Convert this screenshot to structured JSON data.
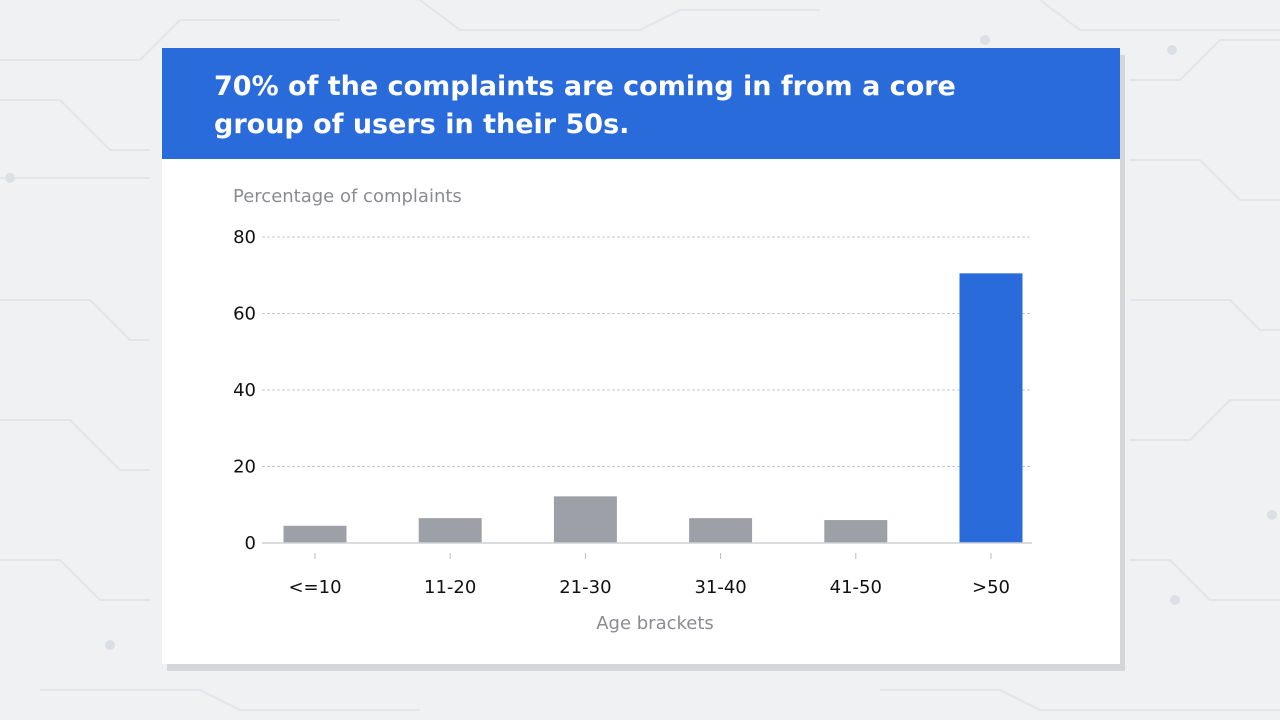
{
  "headline": "70% of the complaints are coming in from a core group of users in their 50s.",
  "colors": {
    "accent": "#2a6bdc",
    "bar_default": "#9da0a7",
    "bar_highlight": "#2a6bdc",
    "background": "#f0f1f3"
  },
  "chart_data": {
    "type": "bar",
    "title": "",
    "ylabel": "Percentage of complaints",
    "xlabel": "Age brackets",
    "categories": [
      "<=10",
      "11-20",
      "21-30",
      "31-40",
      "41-50",
      ">50"
    ],
    "values": [
      4.5,
      6.5,
      12.2,
      6.5,
      6.0,
      70.5
    ],
    "highlight": [
      false,
      false,
      false,
      false,
      false,
      true
    ],
    "ylim": [
      0,
      80
    ],
    "yticks": [
      0,
      20,
      40,
      60,
      80
    ],
    "grid": true
  }
}
